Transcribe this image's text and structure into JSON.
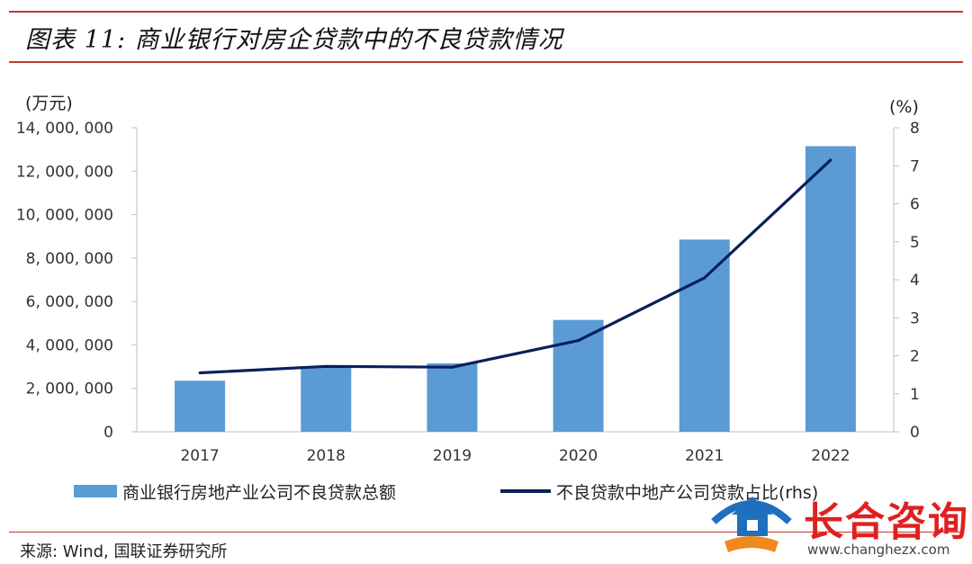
{
  "title": "图表 11: 商业银行对房企贷款中的不良贷款情况",
  "left_unit": "(万元)",
  "right_unit": "(%)",
  "source": "来源: Wind, 国联证券研究所",
  "watermark": {
    "name": "长合咨询",
    "url": "www.changhezx.com",
    "icon": "house-handshake-logo-icon"
  },
  "colors": {
    "bar": "#5b9bd5",
    "line": "#0a1f5c",
    "rule": "#c0392b"
  },
  "chart_data": {
    "type": "bar",
    "categories": [
      "2017",
      "2018",
      "2019",
      "2020",
      "2021",
      "2022"
    ],
    "series": [
      {
        "name": "商业银行房地产业公司不良贷款总额",
        "type": "bar",
        "axis": "left",
        "values": [
          2350000,
          2950000,
          3150000,
          5150000,
          8850000,
          13150000
        ]
      },
      {
        "name": "不良贷款中地产公司贷款占比(rhs)",
        "type": "line",
        "axis": "right",
        "values": [
          1.55,
          1.72,
          1.7,
          2.4,
          4.05,
          7.15
        ]
      }
    ],
    "y_left": {
      "range": [
        0,
        14000000
      ],
      "ticks": [
        0,
        2000000,
        4000000,
        6000000,
        8000000,
        10000000,
        12000000,
        14000000
      ],
      "tick_labels": [
        "0",
        "2, 000, 000",
        "4, 000, 000",
        "6, 000, 000",
        "8, 000, 000",
        "10, 000, 000",
        "12, 000, 000",
        "14, 000, 000"
      ]
    },
    "y_right": {
      "range": [
        0,
        8
      ],
      "ticks": [
        0,
        1,
        2,
        3,
        4,
        5,
        6,
        7,
        8
      ],
      "tick_labels": [
        "0",
        "1",
        "2",
        "3",
        "4",
        "5",
        "6",
        "7",
        "8"
      ]
    },
    "grid": false,
    "legend_position": "bottom"
  }
}
